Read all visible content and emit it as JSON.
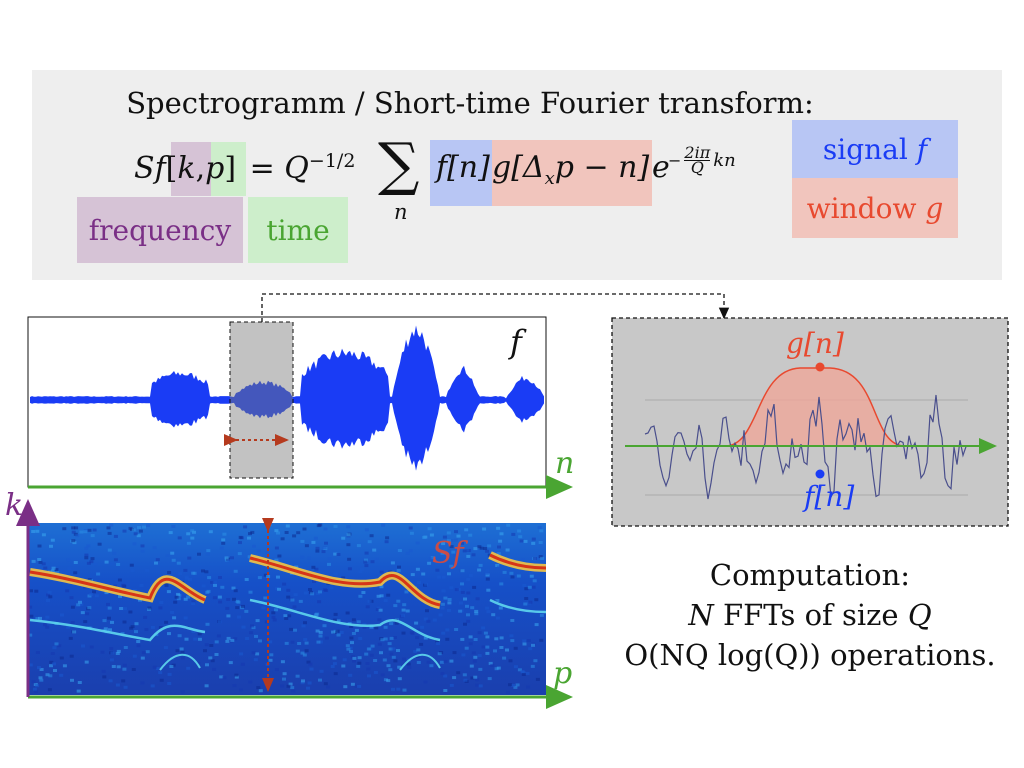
{
  "formula": {
    "title": "Spectrogramm / Short-time Fourier transform:",
    "lhs_S": "S",
    "lhs_f": "f",
    "lhs_open": "[",
    "lhs_k": "k",
    "lhs_comma": ",",
    "lhs_p": "p",
    "lhs_close": "]",
    "equals": "=",
    "Q": "Q",
    "exp": "−1/2",
    "sum": "∑",
    "sum_index": "n",
    "fn": "f[n]",
    "g_term": "g[Δ",
    "g_sub": "x",
    "g_rest": "p − n]",
    "e": "e",
    "exp_minus": "−",
    "exp_num": "2iπ",
    "exp_den": "Q",
    "exp_tail": "kn"
  },
  "labels": {
    "frequency": "frequency",
    "time": "time",
    "signal_text": "signal",
    "signal_var": "f",
    "window_text": "window",
    "window_var": "g"
  },
  "signal_plot": {
    "f_label": "f",
    "n_axis": "n"
  },
  "spectrogram": {
    "k_axis": "k",
    "p_axis": "p",
    "sf_label": "Sf"
  },
  "zoom": {
    "g_label": "g[n]",
    "f_label": "f[n]"
  },
  "computation": {
    "line1": "Computation:",
    "line2_N": "N",
    "line2_mid": " FFTs of size ",
    "line2_Q": "Q",
    "line3": "O(NQ log(Q)) operations."
  },
  "colors": {
    "signal_blue": "#1a3cf5",
    "window_red": "#e8492f",
    "time_green": "#4aa532",
    "freq_purple": "#7a2f86",
    "hl_purple": "#d6c3d6",
    "hl_green": "#cdeecb",
    "hl_blue": "#b8c6f4",
    "hl_red": "#f1c5bd"
  }
}
